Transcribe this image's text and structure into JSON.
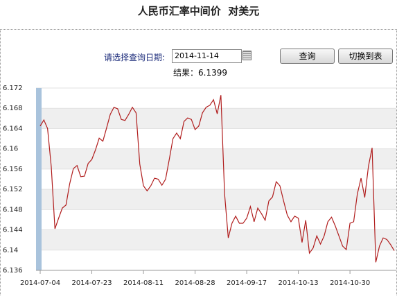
{
  "page": {
    "title": "人民币汇率中间价  对美元",
    "date_label": "请选择查询日期:",
    "date_value": "2014-11-14",
    "query_button": "查询",
    "switch_button": "切换到表",
    "result": "结果：6.1399"
  },
  "chart_data": {
    "type": "line",
    "categories": [
      "2014-07-04",
      null,
      null,
      null,
      null,
      null,
      null,
      null,
      null,
      null,
      null,
      null,
      null,
      null,
      "2014-07-23",
      null,
      null,
      null,
      null,
      null,
      null,
      null,
      null,
      null,
      null,
      null,
      null,
      null,
      "2014-08-11",
      null,
      null,
      null,
      null,
      null,
      null,
      null,
      null,
      null,
      null,
      null,
      null,
      null,
      "2014-08-28",
      null,
      null,
      null,
      null,
      null,
      null,
      null,
      null,
      null,
      null,
      null,
      null,
      null,
      "2014-09-17",
      null,
      null,
      null,
      null,
      null,
      null,
      null,
      null,
      null,
      null,
      null,
      null,
      null,
      "2014-10-13",
      null,
      null,
      null,
      null,
      null,
      null,
      null,
      null,
      null,
      null,
      null,
      null,
      null,
      "2014-10-30",
      null,
      null,
      null,
      null,
      null,
      null,
      null,
      null,
      null,
      null,
      null,
      null
    ],
    "series": [
      {
        "color": "#b01c1c",
        "values": [
          6.1645,
          6.1657,
          6.164,
          6.1565,
          6.1442,
          6.1463,
          6.1483,
          6.1489,
          6.1531,
          6.1561,
          6.1567,
          6.1545,
          6.1546,
          6.1571,
          6.1579,
          6.1598,
          6.1621,
          6.1615,
          6.1641,
          6.1668,
          6.1682,
          6.1679,
          6.1658,
          6.1656,
          6.1668,
          6.1682,
          6.1671,
          6.157,
          6.1527,
          6.1517,
          6.1527,
          6.1542,
          6.154,
          6.1528,
          6.154,
          6.1579,
          6.162,
          6.1631,
          6.162,
          6.1654,
          6.1661,
          6.1658,
          6.1638,
          6.1645,
          6.1671,
          6.1682,
          6.1686,
          6.1697,
          6.1669,
          6.1706,
          6.1511,
          6.1424,
          6.1453,
          6.1467,
          6.1453,
          6.1453,
          6.1463,
          6.1486,
          6.1456,
          6.1483,
          6.1472,
          6.1459,
          6.1497,
          6.1505,
          6.1535,
          6.1527,
          6.1497,
          6.1469,
          6.1456,
          6.1467,
          6.1463,
          6.1415,
          6.1459,
          6.1394,
          6.1404,
          6.1428,
          6.1412,
          6.1428,
          6.1456,
          6.1465,
          6.1448,
          6.1428,
          6.1408,
          6.1401,
          6.1453,
          6.1456,
          6.1511,
          6.1542,
          6.1504,
          6.1565,
          6.1602,
          6.1376,
          6.1408,
          6.1424,
          6.1421,
          6.1411,
          6.1399
        ]
      }
    ],
    "ylim": [
      6.136,
      6.172
    ],
    "yticks": [
      6.136,
      6.14,
      6.144,
      6.148,
      6.152,
      6.156,
      6.16,
      6.164,
      6.168,
      6.172
    ],
    "grid": true
  }
}
